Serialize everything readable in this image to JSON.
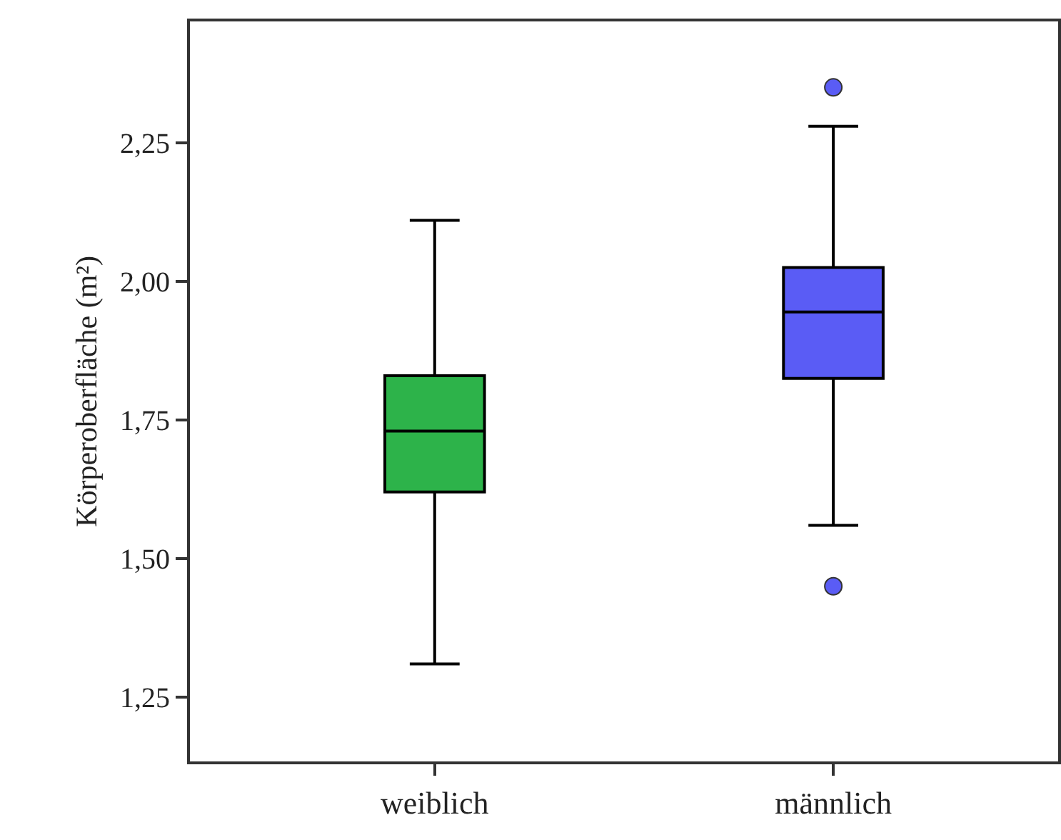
{
  "chart_data": {
    "type": "box",
    "ylabel": "Körperoberfläche (m²)",
    "categories": [
      "weiblich",
      "männlich"
    ],
    "colors": [
      "#2db34a",
      "#5a5cf5"
    ],
    "boxes": [
      {
        "low": 1.31,
        "q1": 1.62,
        "median": 1.73,
        "q3": 1.83,
        "high": 2.11
      },
      {
        "low": 1.56,
        "q1": 1.825,
        "median": 1.945,
        "q3": 2.025,
        "high": 2.28,
        "outliers": [
          2.35,
          1.45
        ]
      }
    ],
    "ylim": [
      1.134,
      2.469
    ],
    "yticks": [
      {
        "value": 1.25,
        "label": "1,25"
      },
      {
        "value": 1.5,
        "label": "1,50"
      },
      {
        "value": 1.75,
        "label": "1,75"
      },
      {
        "value": 2.0,
        "label": "2,00"
      },
      {
        "value": 2.25,
        "label": "2,25"
      }
    ],
    "marker": "circle"
  }
}
